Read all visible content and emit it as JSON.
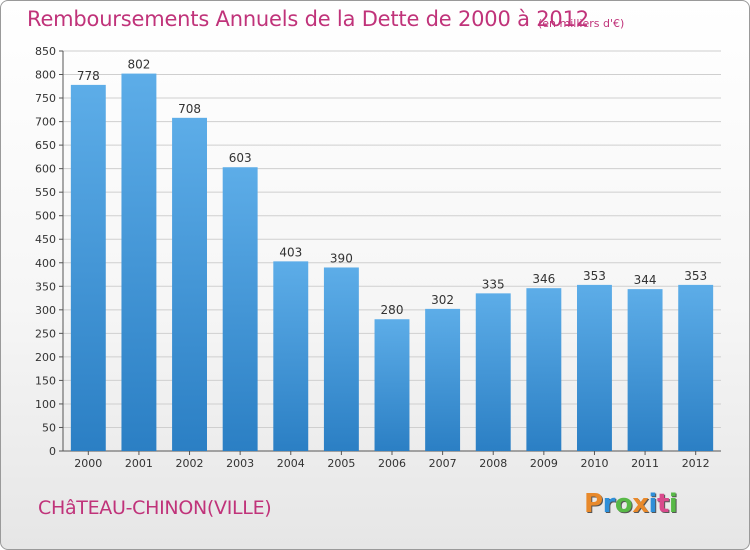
{
  "title": "Remboursements Annuels de la Dette de 2000 à 2012",
  "subtitle": "(en milliers d'€)",
  "location": "CHâTEAU-CHINON(VILLE)",
  "logo": {
    "letters": [
      "P",
      "r",
      "o",
      "x",
      "i",
      "t",
      "i"
    ],
    "colors": [
      "#e8892b",
      "#2f8fd8",
      "#58b947",
      "#e8892b",
      "#2f8fd8",
      "#d94a8c",
      "#58b947"
    ]
  },
  "colors": {
    "bar_top": "#5dade8",
    "bar_bottom": "#2b7fc4",
    "accent": "#c0337a"
  },
  "chart_data": {
    "type": "bar",
    "categories": [
      "2000",
      "2001",
      "2002",
      "2003",
      "2004",
      "2005",
      "2006",
      "2007",
      "2008",
      "2009",
      "2010",
      "2011",
      "2012"
    ],
    "values": [
      778,
      802,
      708,
      603,
      403,
      390,
      280,
      302,
      335,
      346,
      353,
      344,
      353
    ],
    "yticks": [
      0,
      50,
      100,
      150,
      200,
      250,
      300,
      350,
      400,
      450,
      500,
      550,
      600,
      650,
      700,
      750,
      800,
      850
    ],
    "ylim": [
      0,
      850
    ],
    "grid": true,
    "data_labels": true
  }
}
